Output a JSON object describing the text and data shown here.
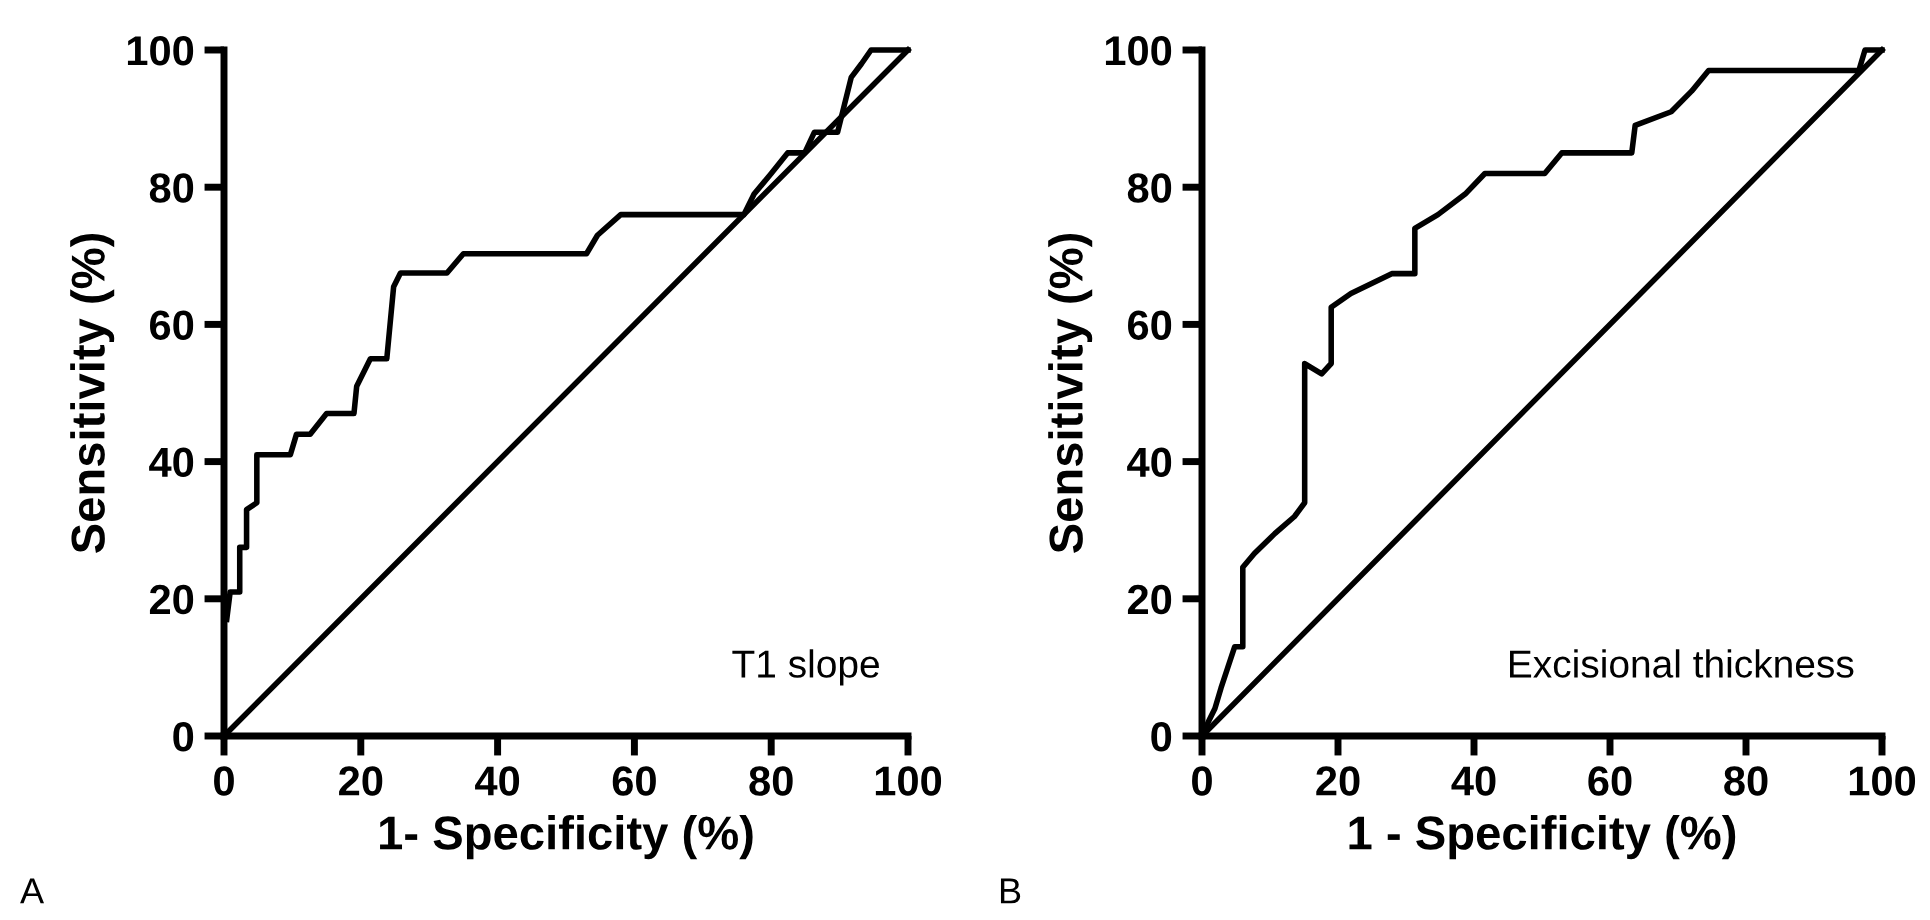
{
  "chart_data": [
    {
      "type": "line",
      "xlabel": "1- Specificity (%)",
      "ylabel": "Sensitivity (%)",
      "annotations": [
        "T1 slope",
        "A"
      ],
      "xlim": [
        0,
        100
      ],
      "ylim": [
        0,
        100
      ],
      "xticks": [
        0,
        20,
        40,
        60,
        80,
        100
      ],
      "yticks": [
        0,
        20,
        40,
        60,
        80,
        100
      ],
      "grid": false,
      "legend": false,
      "line_style": "solid",
      "series": [
        {
          "color": "#000000",
          "x": [
            0.4,
            0.9,
            2.3,
            2.3,
            3.3,
            3.3,
            4.8,
            4.8,
            9.7,
            10.6,
            12.6,
            15,
            19,
            19.4,
            21.4,
            23.8,
            24.8,
            25.8,
            32.6,
            35,
            53,
            54.6,
            58,
            76,
            77.5,
            80,
            82.4,
            84.9,
            86.3,
            89.7,
            90.7,
            91.7,
            93.2,
            94.6,
            100
          ],
          "values": [
            17,
            21,
            21,
            27.5,
            27.5,
            33,
            34,
            41,
            41,
            44,
            44,
            47,
            47,
            51,
            55,
            55,
            65.5,
            67.5,
            67.5,
            70.3,
            70.3,
            73,
            76,
            76,
            79,
            82,
            85,
            85,
            88,
            88,
            92,
            96,
            98,
            100,
            100
          ]
        },
        {
          "color": "#000000",
          "x": [
            0,
            100
          ],
          "values": [
            0,
            100
          ]
        }
      ]
    },
    {
      "type": "line",
      "xlabel": "1 - Specificity (%)",
      "ylabel": "Sensitivity (%)",
      "annotations": [
        "Excisional thickness",
        "B"
      ],
      "xlim": [
        0,
        100
      ],
      "ylim": [
        0,
        100
      ],
      "xticks": [
        0,
        20,
        40,
        60,
        80,
        100
      ],
      "yticks": [
        0,
        20,
        40,
        60,
        80,
        100
      ],
      "grid": false,
      "legend": false,
      "line_style": "solid",
      "series": [
        {
          "color": "#000000",
          "x": [
            0,
            0.9,
            1.9,
            2.8,
            3.8,
            4.8,
            6,
            6,
            7.7,
            10.7,
            13.6,
            15.1,
            15.1,
            17.6,
            19,
            19,
            21.9,
            27.9,
            31.3,
            31.3,
            34.7,
            38.7,
            41.6,
            50.4,
            52.9,
            63.2,
            63.7,
            69,
            72,
            74.5,
            96.6,
            97.5,
            100
          ],
          "values": [
            0,
            2,
            4,
            7,
            10,
            13,
            13,
            24.6,
            26.6,
            29.5,
            32,
            34,
            54.3,
            52.8,
            54.3,
            62.5,
            64.5,
            67.4,
            67.4,
            74,
            76,
            79,
            82,
            82,
            85,
            85,
            89,
            91,
            94,
            97,
            97,
            100,
            100
          ]
        },
        {
          "color": "#000000",
          "x": [
            0,
            100
          ],
          "values": [
            0,
            100
          ]
        }
      ]
    }
  ]
}
